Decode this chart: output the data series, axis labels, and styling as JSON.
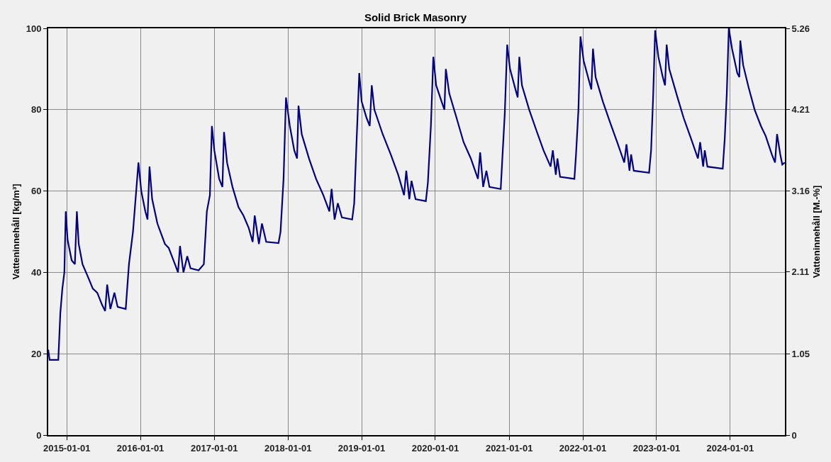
{
  "chart_data": {
    "type": "line",
    "title": "Solid Brick Masonry",
    "ylabel": "Vatteninnehåll [kg/m³]",
    "y2label": "Vatteninnehåll [M.-%]",
    "xlim": [
      "2014-10-01",
      "2024-09-28"
    ],
    "xticks": [
      "2015-01-01",
      "2016-01-01",
      "2017-01-01",
      "2018-01-01",
      "2019-01-01",
      "2020-01-01",
      "2021-01-01",
      "2022-01-01",
      "2023-01-01",
      "2024-01-01"
    ],
    "ylim": [
      0,
      100
    ],
    "yticks": [
      0,
      20,
      40,
      60,
      80,
      100
    ],
    "y2lim": [
      0,
      5.26
    ],
    "y2ticks": [
      0,
      1.05,
      2.11,
      3.16,
      4.21,
      5.26
    ],
    "grid": true,
    "marker": "none",
    "line_style": "solid",
    "series": [
      {
        "color": "#000080",
        "x": [
          "2014-10-01",
          "2014-10-08",
          "2014-11-20",
          "2014-11-30",
          "2014-12-10",
          "2014-12-20",
          "2014-12-27",
          "2015-01-05",
          "2015-01-25",
          "2015-02-10",
          "2015-02-20",
          "2015-03-01",
          "2015-03-20",
          "2015-04-15",
          "2015-05-10",
          "2015-06-01",
          "2015-06-25",
          "2015-07-10",
          "2015-07-20",
          "2015-08-05",
          "2015-08-25",
          "2015-09-10",
          "2015-10-20",
          "2015-11-05",
          "2015-11-25",
          "2015-12-22",
          "2016-01-05",
          "2016-01-25",
          "2016-02-05",
          "2016-02-15",
          "2016-02-28",
          "2016-03-25",
          "2016-05-01",
          "2016-05-20",
          "2016-06-20",
          "2016-07-05",
          "2016-07-15",
          "2016-08-01",
          "2016-08-20",
          "2016-09-05",
          "2016-10-15",
          "2016-11-10",
          "2016-11-25",
          "2016-12-10",
          "2016-12-20",
          "2017-01-01",
          "2017-01-25",
          "2017-02-10",
          "2017-02-18",
          "2017-03-05",
          "2017-04-01",
          "2017-05-01",
          "2017-05-25",
          "2017-06-20",
          "2017-07-10",
          "2017-07-20",
          "2017-08-10",
          "2017-08-25",
          "2017-09-15",
          "2017-11-15",
          "2017-11-25",
          "2017-12-10",
          "2017-12-22",
          "2018-01-10",
          "2018-02-01",
          "2018-02-15",
          "2018-02-22",
          "2018-03-10",
          "2018-04-15",
          "2018-05-20",
          "2018-06-25",
          "2018-07-25",
          "2018-08-05",
          "2018-08-20",
          "2018-09-05",
          "2018-09-25",
          "2018-11-15",
          "2018-11-25",
          "2018-12-05",
          "2018-12-20",
          "2019-01-01",
          "2019-01-25",
          "2019-02-10",
          "2019-02-20",
          "2019-03-05",
          "2019-04-15",
          "2019-05-25",
          "2019-07-01",
          "2019-07-30",
          "2019-08-10",
          "2019-08-25",
          "2019-09-05",
          "2019-09-25",
          "2019-11-15",
          "2019-11-25",
          "2019-12-10",
          "2019-12-22",
          "2020-01-05",
          "2020-02-01",
          "2020-02-15",
          "2020-02-22",
          "2020-03-10",
          "2020-04-15",
          "2020-05-20",
          "2020-06-25",
          "2020-07-30",
          "2020-08-10",
          "2020-08-25",
          "2020-09-10",
          "2020-09-25",
          "2020-11-20",
          "2020-11-28",
          "2020-12-10",
          "2020-12-22",
          "2021-01-05",
          "2021-02-01",
          "2021-02-12",
          "2021-02-20",
          "2021-03-05",
          "2021-04-10",
          "2021-05-15",
          "2021-06-20",
          "2021-07-25",
          "2021-08-05",
          "2021-08-20",
          "2021-08-28",
          "2021-09-10",
          "2021-11-20",
          "2021-11-28",
          "2021-12-10",
          "2021-12-20",
          "2022-01-05",
          "2022-02-01",
          "2022-02-12",
          "2022-02-20",
          "2022-03-05",
          "2022-04-10",
          "2022-05-15",
          "2022-06-20",
          "2022-07-25",
          "2022-08-05",
          "2022-08-20",
          "2022-08-28",
          "2022-09-10",
          "2022-11-25",
          "2022-12-05",
          "2022-12-15",
          "2022-12-25",
          "2023-01-10",
          "2023-02-01",
          "2023-02-12",
          "2023-02-20",
          "2023-03-05",
          "2023-04-15",
          "2023-05-15",
          "2023-06-20",
          "2023-07-25",
          "2023-08-05",
          "2023-08-20",
          "2023-08-28",
          "2023-09-10",
          "2023-11-25",
          "2023-12-05",
          "2023-12-15",
          "2023-12-25",
          "2024-01-10",
          "2024-02-05",
          "2024-02-15",
          "2024-02-20",
          "2024-03-05",
          "2024-04-01",
          "2024-05-01",
          "2024-06-01",
          "2024-06-25",
          "2024-07-25",
          "2024-08-10",
          "2024-08-20",
          "2024-09-05",
          "2024-09-15",
          "2024-09-27"
        ],
        "values": [
          21,
          18.5,
          18.5,
          30,
          36,
          40,
          55,
          48,
          43,
          42,
          55,
          47,
          42,
          39,
          36,
          35,
          32,
          30.5,
          37,
          31,
          35,
          31.5,
          31,
          42,
          50,
          67,
          60,
          55,
          53,
          66,
          58,
          52,
          47,
          46,
          42,
          40,
          46.5,
          40,
          44,
          41,
          40.5,
          42,
          55,
          59,
          76,
          70,
          63,
          61,
          74.5,
          67,
          61,
          56,
          54,
          51,
          47.5,
          54,
          47,
          52,
          47.5,
          47.2,
          50,
          63,
          83,
          76,
          70,
          68,
          81,
          74,
          68,
          63,
          59,
          55,
          60.5,
          53,
          57,
          53.5,
          53,
          57,
          70,
          89,
          82,
          78,
          76,
          86,
          80,
          74,
          69,
          64,
          59,
          65,
          58,
          62.5,
          58,
          57.5,
          62,
          76,
          93,
          86,
          82,
          80,
          90,
          84,
          78,
          72,
          68,
          63,
          69.5,
          61,
          65,
          61,
          60.5,
          68,
          79,
          96,
          90,
          85,
          83,
          93,
          86,
          80,
          75,
          70,
          66,
          70,
          64,
          68,
          63.5,
          63,
          69,
          80,
          98,
          92,
          87,
          85,
          95,
          88,
          82,
          77,
          72,
          67,
          71.5,
          65,
          69,
          65,
          64.5,
          70,
          83,
          99.5,
          93,
          88,
          86,
          96,
          90,
          83,
          78,
          73,
          68,
          72,
          66,
          70,
          66,
          65.5,
          73,
          84,
          100,
          95,
          89,
          88,
          97,
          91,
          85.5,
          80,
          76,
          73.5,
          69,
          67,
          74,
          69,
          66.5,
          67
        ]
      }
    ]
  }
}
